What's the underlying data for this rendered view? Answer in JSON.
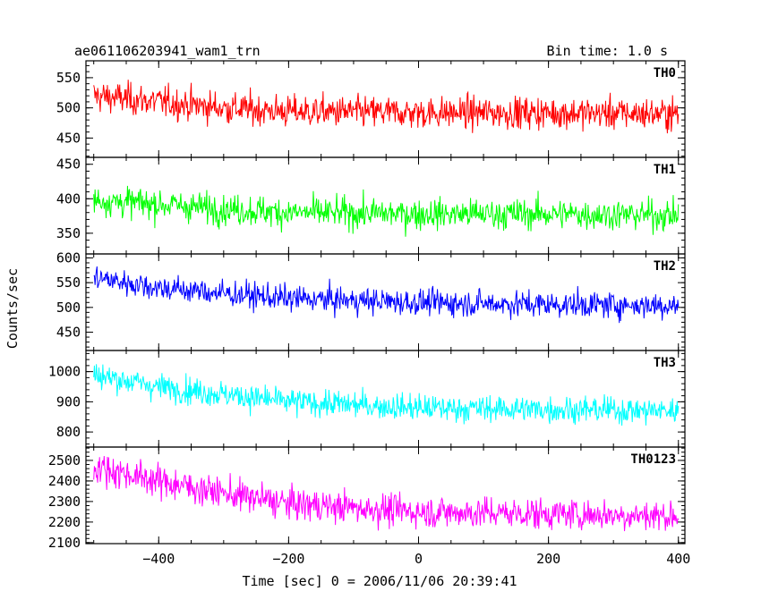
{
  "header": {
    "title": "ae061106203941_wam1_trn",
    "bin_time": "Bin time: 1.0 s"
  },
  "axes": {
    "xlabel": "Time [sec] 0 = 2006/11/06 20:39:41",
    "ylabel": "Counts/sec"
  },
  "chart_data": {
    "type": "line",
    "x_range": [
      -512,
      410
    ],
    "x_ticks": [
      -400,
      -200,
      0,
      200,
      400
    ],
    "x_tick_labels": [
      "−400",
      "−200",
      "0",
      "200",
      "400"
    ],
    "grid": false,
    "panels": [
      {
        "name": "TH0",
        "color": "#ff0000",
        "ylim": [
          418,
          578
        ],
        "y_ticks": [
          450,
          500,
          550
        ],
        "y_tick_labels": [
          "450",
          "500",
          "550"
        ],
        "trend": {
          "x": [
            -500,
            -400,
            -300,
            -200,
            0,
            200,
            400
          ],
          "y": [
            520,
            510,
            500,
            494,
            492,
            492,
            490
          ]
        },
        "noise_amplitude": 24
      },
      {
        "name": "TH1",
        "color": "#00ff00",
        "ylim": [
          320,
          460
        ],
        "y_ticks": [
          350,
          400,
          450
        ],
        "y_tick_labels": [
          "350",
          "400",
          "450"
        ],
        "trend": {
          "x": [
            -500,
            -400,
            -300,
            -200,
            0,
            200,
            400
          ],
          "y": [
            398,
            392,
            385,
            380,
            378,
            378,
            376
          ]
        },
        "noise_amplitude": 20
      },
      {
        "name": "TH2",
        "color": "#0000ff",
        "ylim": [
          413,
          608
        ],
        "y_ticks": [
          450,
          500,
          550,
          600
        ],
        "y_tick_labels": [
          "450",
          "500",
          "550",
          "600"
        ],
        "trend": {
          "x": [
            -500,
            -400,
            -300,
            -200,
            0,
            200,
            400
          ],
          "y": [
            560,
            540,
            528,
            518,
            510,
            506,
            504
          ]
        },
        "noise_amplitude": 24
      },
      {
        "name": "TH3",
        "color": "#00ffff",
        "ylim": [
          750,
          1070
        ],
        "y_ticks": [
          800,
          900,
          1000
        ],
        "y_tick_labels": [
          "800",
          "900",
          "1000"
        ],
        "trend": {
          "x": [
            -500,
            -400,
            -300,
            -200,
            0,
            200,
            400
          ],
          "y": [
            990,
            950,
            925,
            900,
            880,
            875,
            870
          ]
        },
        "noise_amplitude": 40
      },
      {
        "name": "TH0123",
        "color": "#ff00ff",
        "ylim": [
          2095,
          2565
        ],
        "y_ticks": [
          2100,
          2200,
          2300,
          2400,
          2500
        ],
        "y_tick_labels": [
          "2100",
          "2200",
          "2300",
          "2400",
          "2500"
        ],
        "trend": {
          "x": [
            -500,
            -400,
            -300,
            -200,
            0,
            200,
            400
          ],
          "y": [
            2470,
            2400,
            2340,
            2290,
            2250,
            2240,
            2230
          ]
        },
        "noise_amplitude": 70
      }
    ]
  }
}
